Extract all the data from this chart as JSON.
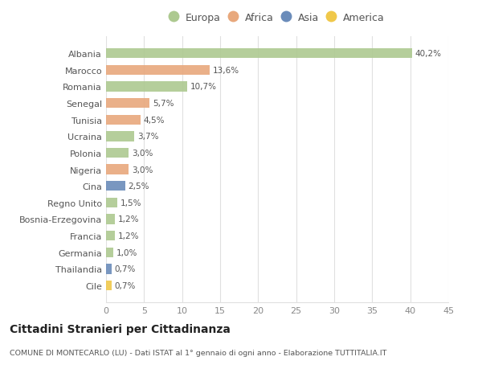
{
  "categories": [
    "Albania",
    "Marocco",
    "Romania",
    "Senegal",
    "Tunisia",
    "Ucraina",
    "Polonia",
    "Nigeria",
    "Cina",
    "Regno Unito",
    "Bosnia-Erzegovina",
    "Francia",
    "Germania",
    "Thailandia",
    "Cile"
  ],
  "values": [
    40.2,
    13.6,
    10.7,
    5.7,
    4.5,
    3.7,
    3.0,
    3.0,
    2.5,
    1.5,
    1.2,
    1.2,
    1.0,
    0.7,
    0.7
  ],
  "labels": [
    "40,2%",
    "13,6%",
    "10,7%",
    "5,7%",
    "4,5%",
    "3,7%",
    "3,0%",
    "3,0%",
    "2,5%",
    "1,5%",
    "1,2%",
    "1,2%",
    "1,0%",
    "0,7%",
    "0,7%"
  ],
  "continents": [
    "Europa",
    "Africa",
    "Europa",
    "Africa",
    "Africa",
    "Europa",
    "Europa",
    "Africa",
    "Asia",
    "Europa",
    "Europa",
    "Europa",
    "Europa",
    "Asia",
    "America"
  ],
  "colors": {
    "Europa": "#adc990",
    "Africa": "#e8a87c",
    "Asia": "#6b8cba",
    "America": "#f0c84a"
  },
  "legend_order": [
    "Europa",
    "Africa",
    "Asia",
    "America"
  ],
  "title": "Cittadini Stranieri per Cittadinanza",
  "subtitle": "COMUNE DI MONTECARLO (LU) - Dati ISTAT al 1° gennaio di ogni anno - Elaborazione TUTTITALIA.IT",
  "xlim": [
    0,
    45
  ],
  "xticks": [
    0,
    5,
    10,
    15,
    20,
    25,
    30,
    35,
    40,
    45
  ],
  "bg_color": "#ffffff",
  "grid_color": "#e0e0e0"
}
